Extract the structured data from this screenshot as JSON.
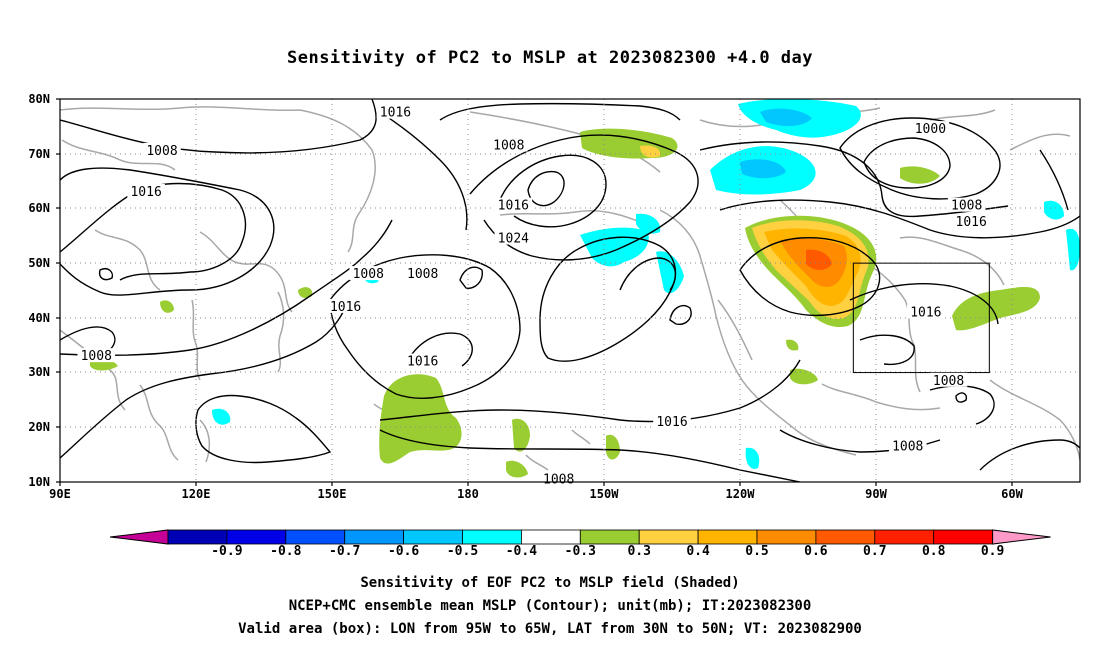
{
  "title": "Sensitivity of PC2 to MSLP at 2023082300 +4.0 day",
  "axes": {
    "lat_labels": [
      "80N",
      "70N",
      "60N",
      "50N",
      "40N",
      "30N",
      "20N",
      "10N"
    ],
    "lon_labels": [
      "90E",
      "120E",
      "150E",
      "180",
      "150W",
      "120W",
      "90W",
      "60W"
    ]
  },
  "contour_labels": [
    {
      "text": "1016",
      "lon": 164,
      "lat": 77.5
    },
    {
      "text": "1008",
      "lon": 112.5,
      "lat": 70.5
    },
    {
      "text": "1016",
      "lon": 109,
      "lat": 63
    },
    {
      "text": "1008",
      "lon": 158,
      "lat": 48
    },
    {
      "text": "1016",
      "lon": 153,
      "lat": 42
    },
    {
      "text": "1008",
      "lon": 98,
      "lat": 33
    },
    {
      "text": "1008",
      "lon": 189,
      "lat": 71.5
    },
    {
      "text": "1016",
      "lon": 190,
      "lat": 60.5
    },
    {
      "text": "1024",
      "lon": 190,
      "lat": 54.5
    },
    {
      "text": "1008",
      "lon": 170,
      "lat": 48
    },
    {
      "text": "1016",
      "lon": 170,
      "lat": 32
    },
    {
      "text": "1016",
      "lon": 225,
      "lat": 21
    },
    {
      "text": "1000",
      "lon": 282,
      "lat": 74.5
    },
    {
      "text": "1008",
      "lon": 290,
      "lat": 60.5
    },
    {
      "text": "1016",
      "lon": 291,
      "lat": 57.5
    },
    {
      "text": "1016",
      "lon": 281,
      "lat": 41
    },
    {
      "text": "1008",
      "lon": 286,
      "lat": 28.5
    },
    {
      "text": "1008",
      "lon": 277,
      "lat": 16.5
    },
    {
      "text": "1008",
      "lon": 200,
      "lat": 10.5
    }
  ],
  "valid_box": {
    "lon_min": 265,
    "lon_max": 295,
    "lat_min": 30,
    "lat_max": 50
  },
  "colorbar": {
    "colors": [
      "#c40096",
      "#0000b4",
      "#0000e6",
      "#0050ff",
      "#0096ff",
      "#00c8ff",
      "#00ffff",
      "#ffffff",
      "#9acd32",
      "#ffd040",
      "#ffb400",
      "#ff8c00",
      "#ff5a00",
      "#ff2000",
      "#ff0000",
      "#ff9ac8"
    ],
    "tick_labels": [
      "-0.9",
      "-0.8",
      "-0.7",
      "-0.6",
      "-0.5",
      "-0.4",
      "-0.3",
      "0.3",
      "0.4",
      "0.5",
      "0.6",
      "0.7",
      "0.8",
      "0.9"
    ]
  },
  "captions": [
    "Sensitivity of EOF PC2 to MSLP field (Shaded)",
    "NCEP+CMC ensemble mean MSLP (Contour); unit(mb); IT:2023082300",
    "Valid area (box): LON from 95W to 65W, LAT from 30N to 50N; VT: 2023082900"
  ]
}
